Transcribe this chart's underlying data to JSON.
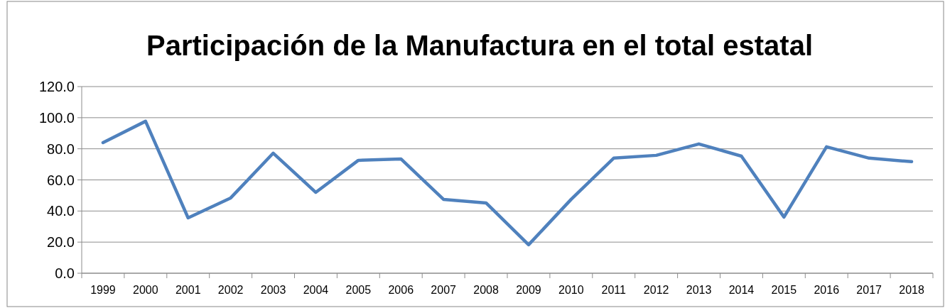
{
  "chart_data": {
    "type": "line",
    "title": "Participación de la Manufactura en el total estatal",
    "categories": [
      "1999",
      "2000",
      "2001",
      "2002",
      "2003",
      "2004",
      "2005",
      "2006",
      "2007",
      "2008",
      "2009",
      "2010",
      "2011",
      "2012",
      "2013",
      "2014",
      "2015",
      "2016",
      "2017",
      "2018"
    ],
    "series": [
      {
        "color": "#4f81bd",
        "values": [
          84,
          97.7,
          35.6,
          48.4,
          77.2,
          52,
          72.6,
          73.5,
          47.5,
          45.2,
          18.3,
          47.5,
          74,
          75.8,
          83.1,
          75.3,
          36.1,
          81.3,
          74,
          71.7
        ]
      }
    ],
    "ylim": [
      0,
      120
    ],
    "yticks": [
      {
        "value": 0,
        "label": "0.0"
      },
      {
        "value": 20,
        "label": "20.0"
      },
      {
        "value": 40,
        "label": "40.0"
      },
      {
        "value": 60,
        "label": "60.0"
      },
      {
        "value": 80,
        "label": "80.0"
      },
      {
        "value": 100,
        "label": "100.0"
      },
      {
        "value": 120,
        "label": "120.0"
      }
    ],
    "grid": "y",
    "marker": "none",
    "line_style": "solid"
  }
}
